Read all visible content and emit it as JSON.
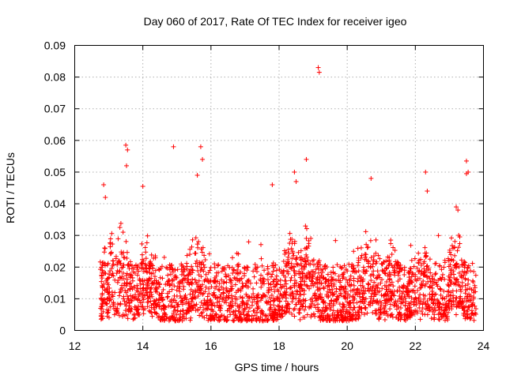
{
  "chart_data": {
    "type": "scatter",
    "title": "Day 060 of 2017, Rate Of TEC Index for receiver igeo",
    "xlabel": "GPS time / hours",
    "ylabel": "ROTI / TECUs",
    "xlim": [
      12,
      24
    ],
    "ylim": [
      0,
      0.09
    ],
    "xticks": [
      12,
      14,
      16,
      18,
      20,
      22,
      24
    ],
    "yticks": [
      0,
      0.01,
      0.02,
      0.03,
      0.04,
      0.05,
      0.06,
      0.07,
      0.08,
      0.09
    ],
    "xtick_labels": [
      "12",
      "14",
      "16",
      "18",
      "20",
      "22",
      "24"
    ],
    "ytick_labels": [
      "0",
      "0.01",
      "0.02",
      "0.03",
      "0.04",
      "0.05",
      "0.06",
      "0.07",
      "0.08",
      "0.09"
    ],
    "grid": true,
    "marker": "+",
    "marker_color": "#ff0000",
    "series": [
      {
        "name": "ROTI",
        "note": "Dense cloud of several thousand points between about 12.7 h and 23.8 h, mostly 0.003-0.02 TECU/s; the representative outliers are listed below.",
        "x": [
          12.85,
          12.9,
          13.5,
          13.55,
          13.52,
          14.0,
          14.9,
          15.7,
          15.75,
          15.6,
          17.8,
          18.45,
          18.5,
          18.8,
          19.15,
          19.18,
          20.7,
          22.3,
          22.35,
          23.5,
          23.55,
          23.5,
          23.2,
          23.25
        ],
        "y": [
          0.046,
          0.042,
          0.0585,
          0.057,
          0.052,
          0.0455,
          0.058,
          0.058,
          0.054,
          0.049,
          0.046,
          0.05,
          0.047,
          0.054,
          0.083,
          0.0815,
          0.048,
          0.05,
          0.044,
          0.0535,
          0.05,
          0.0495,
          0.039,
          0.038
        ]
      }
    ]
  }
}
